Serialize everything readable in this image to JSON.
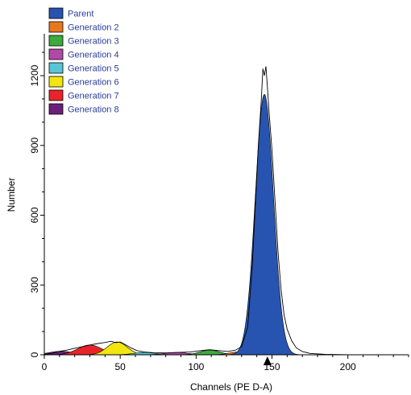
{
  "chart_data": {
    "type": "area",
    "xlabel": "Channels (PE D-A)",
    "ylabel": "Number",
    "xlim": [
      0,
      240
    ],
    "ylim": [
      0,
      1380
    ],
    "x_ticks": [
      0,
      50,
      100,
      150,
      200
    ],
    "y_ticks": [
      0,
      300,
      600,
      900,
      1200
    ],
    "legend_position": "top-left",
    "legend_text_color": "#2b3d9a",
    "marker": {
      "shape": "triangle",
      "x": 147
    },
    "series": [
      {
        "name": "Parent",
        "color": "#2754b0",
        "peak_x": 145,
        "peak_y": 1120,
        "sigma": 6.0
      },
      {
        "name": "Generation 2",
        "color": "#e87820",
        "peak_x": 128,
        "peak_y": 12,
        "sigma": 6.0
      },
      {
        "name": "Generation 3",
        "color": "#3cab3c",
        "peak_x": 109,
        "peak_y": 20,
        "sigma": 6.5
      },
      {
        "name": "Generation 4",
        "color": "#b04aa6",
        "peak_x": 87,
        "peak_y": 10,
        "sigma": 7.5
      },
      {
        "name": "Generation 5",
        "color": "#58c6d6",
        "peak_x": 66,
        "peak_y": 10,
        "sigma": 7.0
      },
      {
        "name": "Generation 6",
        "color": "#f2e610",
        "peak_x": 48,
        "peak_y": 55,
        "sigma": 6.5
      },
      {
        "name": "Generation 7",
        "color": "#e8242a",
        "peak_x": 30,
        "peak_y": 42,
        "sigma": 8.0
      },
      {
        "name": "Generation 8",
        "color": "#6a1f7c",
        "peak_x": 11,
        "peak_y": 15,
        "sigma": 8.0
      }
    ],
    "raw_outline": [
      [
        0,
        2
      ],
      [
        5,
        6
      ],
      [
        10,
        15
      ],
      [
        15,
        20
      ],
      [
        20,
        28
      ],
      [
        25,
        35
      ],
      [
        30,
        42
      ],
      [
        35,
        48
      ],
      [
        40,
        53
      ],
      [
        44,
        58
      ],
      [
        47,
        52
      ],
      [
        50,
        55
      ],
      [
        53,
        45
      ],
      [
        57,
        30
      ],
      [
        61,
        18
      ],
      [
        66,
        12
      ],
      [
        72,
        9
      ],
      [
        80,
        8
      ],
      [
        88,
        10
      ],
      [
        96,
        12
      ],
      [
        103,
        18
      ],
      [
        109,
        22
      ],
      [
        115,
        18
      ],
      [
        121,
        14
      ],
      [
        126,
        20
      ],
      [
        130,
        35
      ],
      [
        134,
        120
      ],
      [
        137,
        380
      ],
      [
        139,
        640
      ],
      [
        141,
        900
      ],
      [
        143,
        1100
      ],
      [
        144,
        1230
      ],
      [
        145,
        1200
      ],
      [
        146,
        1240
      ],
      [
        147,
        1150
      ],
      [
        148,
        1050
      ],
      [
        150,
        880
      ],
      [
        152,
        660
      ],
      [
        154,
        440
      ],
      [
        156,
        280
      ],
      [
        158,
        170
      ],
      [
        160,
        110
      ],
      [
        163,
        60
      ],
      [
        166,
        30
      ],
      [
        170,
        14
      ],
      [
        175,
        6
      ],
      [
        185,
        2
      ],
      [
        200,
        0
      ]
    ]
  }
}
